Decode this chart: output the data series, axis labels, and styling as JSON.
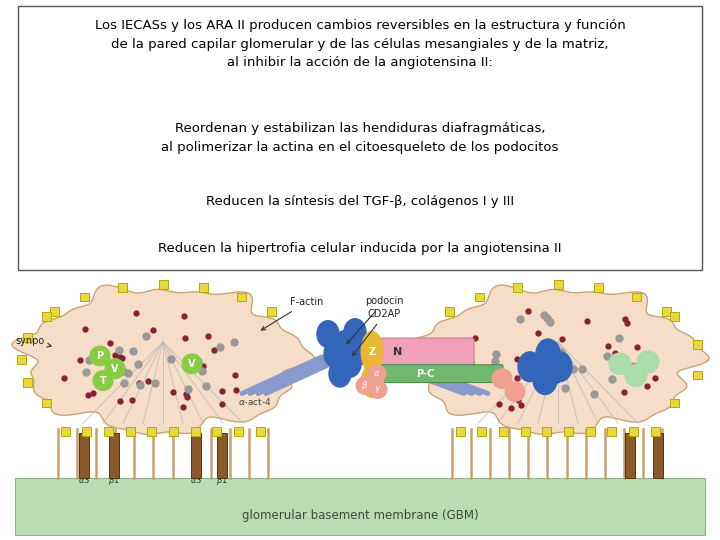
{
  "title_lines": [
    "Los IECASs y los ARA II producen cambios reversibles en la estructura y función",
    "de la pared capilar glomerular y de las células mesangiales y de la matriz,",
    "al inhibir la acción de la angiotensina II:"
  ],
  "bullet1_lines": [
    "Reordenan y estabilizan las hendiduras diafragmáticas,",
    "al polimerizar la actina en el citoesqueleto de los podocitos"
  ],
  "bullet2": "Reducen la síntesis del TGF-β, colágenos I y III",
  "bullet3": "Reducen la hipertrofia celular inducida por la angiotensina II",
  "bg_color": "#ffffff",
  "box_edge_color": "#555555",
  "text_color": "#000000",
  "fig_width": 7.2,
  "fig_height": 5.4,
  "dpi": 100,
  "podocyte_color": "#f5ddc8",
  "podocyte_edge": "#c8a070",
  "gbm_color": "#b8ddb0",
  "gbm_edge": "#88bb80",
  "yellow_sq_color": "#e8d840",
  "yellow_sq_edge": "#b8a800",
  "blue_oval_color": "#3366bb",
  "darkred_dot_color": "#882030",
  "gray_dot_color": "#999999",
  "brown_bar_color": "#8b5a2b",
  "green_circle_color": "#88cc44",
  "lightgreen_circle_color": "#aaddaa",
  "yellow_oval_color": "#e8b830",
  "pink_rect_color": "#f0a0b8",
  "green_bar_color": "#70b870",
  "blue_line_color": "#8899cc",
  "salmon_circle_color": "#f0a090"
}
